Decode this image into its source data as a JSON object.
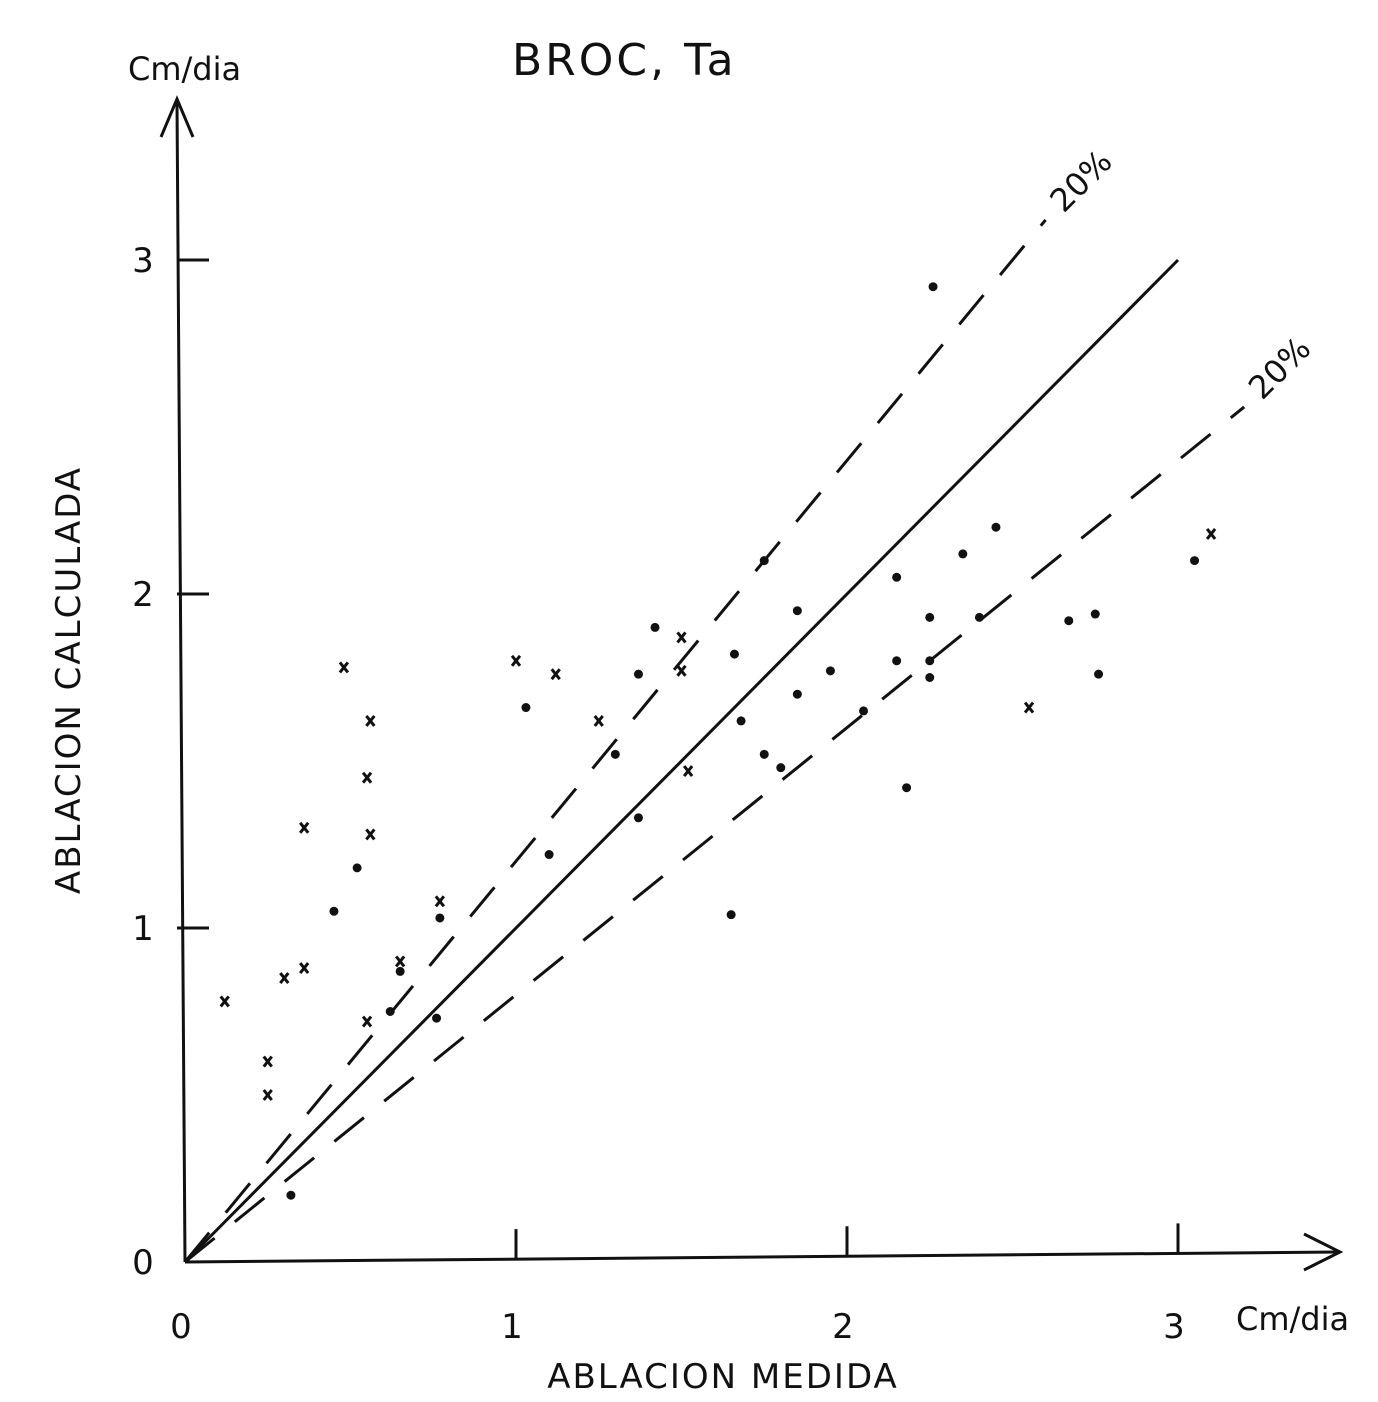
{
  "chart_data": {
    "type": "scatter",
    "title": "BROC, Ta",
    "xlabel": "ABLACION MEDIDA",
    "ylabel": "ABLACION CALCULADA",
    "x_unit": "Cm/dia",
    "y_unit": "Cm/dia",
    "xlim": [
      0,
      3.3
    ],
    "ylim": [
      0,
      3.5
    ],
    "x_ticks": [
      "0",
      "1",
      "2",
      "3"
    ],
    "y_ticks": [
      "0",
      "1",
      "2",
      "3"
    ],
    "grid": false,
    "legend": "none",
    "reference_lines": [
      {
        "style": "solid",
        "slope": 1.0,
        "x_end": 3.0
      },
      {
        "style": "dashed",
        "slope": 1.2,
        "label": "20%",
        "x_end": 2.6
      },
      {
        "style": "dashed",
        "slope": 0.8,
        "label": "20%",
        "x_end": 3.2
      }
    ],
    "series": [
      {
        "marker": "dot",
        "points": [
          [
            2.26,
            2.92
          ],
          [
            1.75,
            2.1
          ],
          [
            1.85,
            1.95
          ],
          [
            1.42,
            1.9
          ],
          [
            1.66,
            1.82
          ],
          [
            1.85,
            1.7
          ],
          [
            1.95,
            1.77
          ],
          [
            1.03,
            1.66
          ],
          [
            1.37,
            1.76
          ],
          [
            1.3,
            1.52
          ],
          [
            1.68,
            1.62
          ],
          [
            1.75,
            1.52
          ],
          [
            1.8,
            1.48
          ],
          [
            2.05,
            1.65
          ],
          [
            2.15,
            2.05
          ],
          [
            2.25,
            1.93
          ],
          [
            2.15,
            1.8
          ],
          [
            2.25,
            1.8
          ],
          [
            2.25,
            1.75
          ],
          [
            2.35,
            2.12
          ],
          [
            2.4,
            1.93
          ],
          [
            2.45,
            2.2
          ],
          [
            2.67,
            1.92
          ],
          [
            2.75,
            1.94
          ],
          [
            2.76,
            1.76
          ],
          [
            3.05,
            2.1
          ],
          [
            2.18,
            1.42
          ],
          [
            1.65,
            1.04
          ],
          [
            1.37,
            1.33
          ],
          [
            1.1,
            1.22
          ],
          [
            0.52,
            1.18
          ],
          [
            0.45,
            1.05
          ],
          [
            0.77,
            1.03
          ],
          [
            0.76,
            0.73
          ],
          [
            0.62,
            0.75
          ],
          [
            0.65,
            0.87
          ],
          [
            0.32,
            0.2
          ]
        ]
      },
      {
        "marker": "x",
        "points": [
          [
            0.12,
            0.78
          ],
          [
            0.25,
            0.6
          ],
          [
            0.25,
            0.5
          ],
          [
            0.3,
            0.85
          ],
          [
            0.36,
            0.88
          ],
          [
            0.36,
            1.3
          ],
          [
            0.48,
            1.78
          ],
          [
            0.56,
            1.62
          ],
          [
            0.55,
            1.45
          ],
          [
            0.56,
            1.28
          ],
          [
            0.55,
            0.72
          ],
          [
            0.65,
            0.9
          ],
          [
            0.77,
            1.08
          ],
          [
            1.0,
            1.8
          ],
          [
            1.12,
            1.76
          ],
          [
            1.25,
            1.62
          ],
          [
            1.5,
            1.87
          ],
          [
            1.5,
            1.77
          ],
          [
            1.52,
            1.47
          ],
          [
            2.55,
            1.66
          ],
          [
            3.1,
            2.18
          ]
        ]
      }
    ]
  }
}
